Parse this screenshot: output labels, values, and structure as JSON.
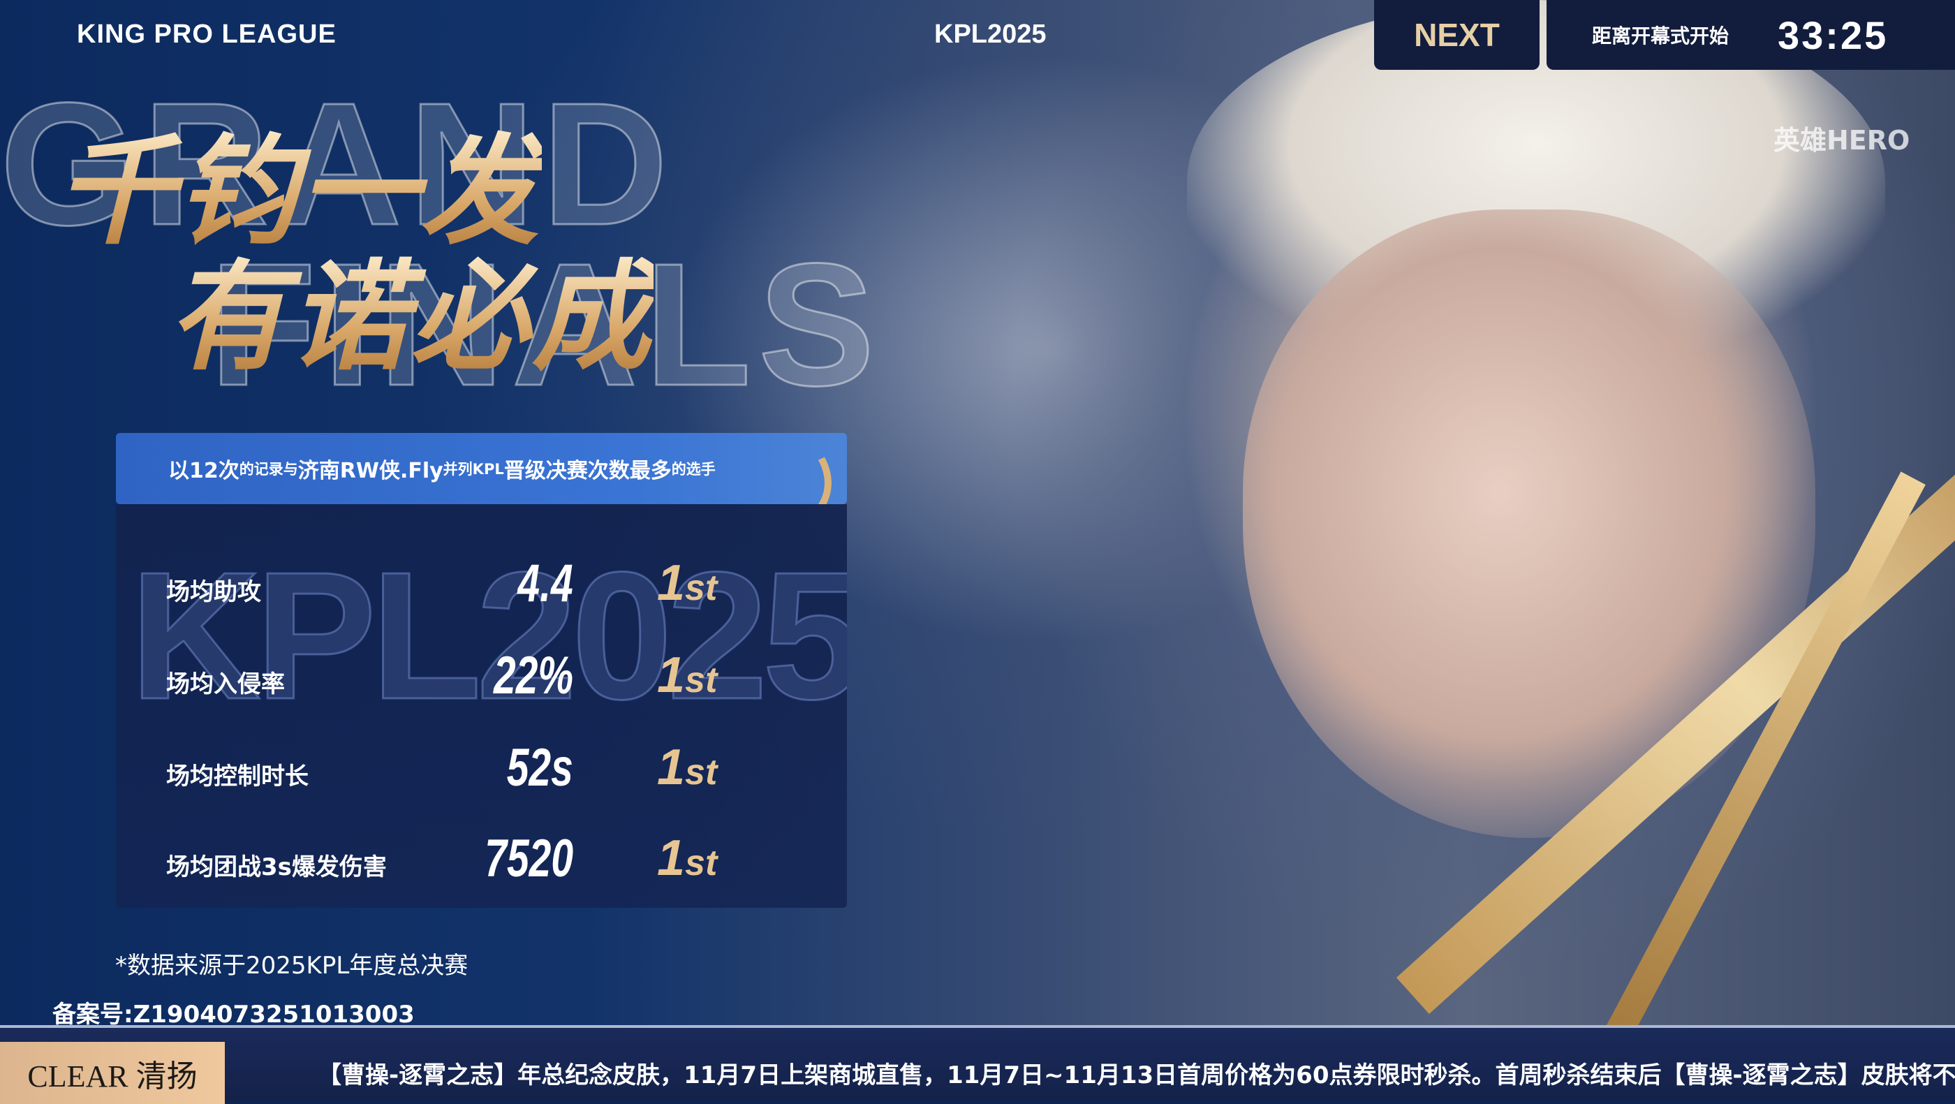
{
  "header": {
    "league": "KING PRO LEAGUE",
    "season": "KPL2025",
    "next_label": "NEXT",
    "countdown_label": "距离开幕式开始",
    "countdown": "33:25"
  },
  "broadcaster_logo": "英雄HERO",
  "background_text": [
    "GRAND",
    "FINALS"
  ],
  "title": {
    "line1": "千钧一发",
    "line2": "有诺必成"
  },
  "banner": {
    "p1": "以12次",
    "p2": "的记录与",
    "p3": "济南RW侠.Fly",
    "p4": "并列KPL",
    "p5": "晋级决赛次数最多",
    "p6": "的选手"
  },
  "panel_watermark": "KPL2025",
  "stats": [
    {
      "label": "场均助攻",
      "value": "4.4",
      "rank": "1",
      "suffix": "st"
    },
    {
      "label": "场均入侵率",
      "value": "22%",
      "rank": "1",
      "suffix": "st"
    },
    {
      "label": "场均控制时长",
      "value": "52s",
      "rank": "1",
      "suffix": "st"
    },
    {
      "label": "场均团战3s爆发伤害",
      "value": "7520",
      "rank": "1",
      "suffix": "st"
    }
  ],
  "note": "*数据来源于2025KPL年度总决赛",
  "record_number": "备案号:Z1904073251013003",
  "ticker": {
    "sponsor": "CLEAR 清扬",
    "message": "【曹操-逐霄之志】年总纪念皮肤，11月7日上架商城直售，11月7日~11月13日首周价格为60点券限时秒杀。首周秒杀结束后【曹操-逐霄之志】皮肤将不"
  },
  "colors": {
    "accent_gold": "#e7c592",
    "banner_blue": "#3a74d4",
    "panel_navy": "#12224e"
  }
}
